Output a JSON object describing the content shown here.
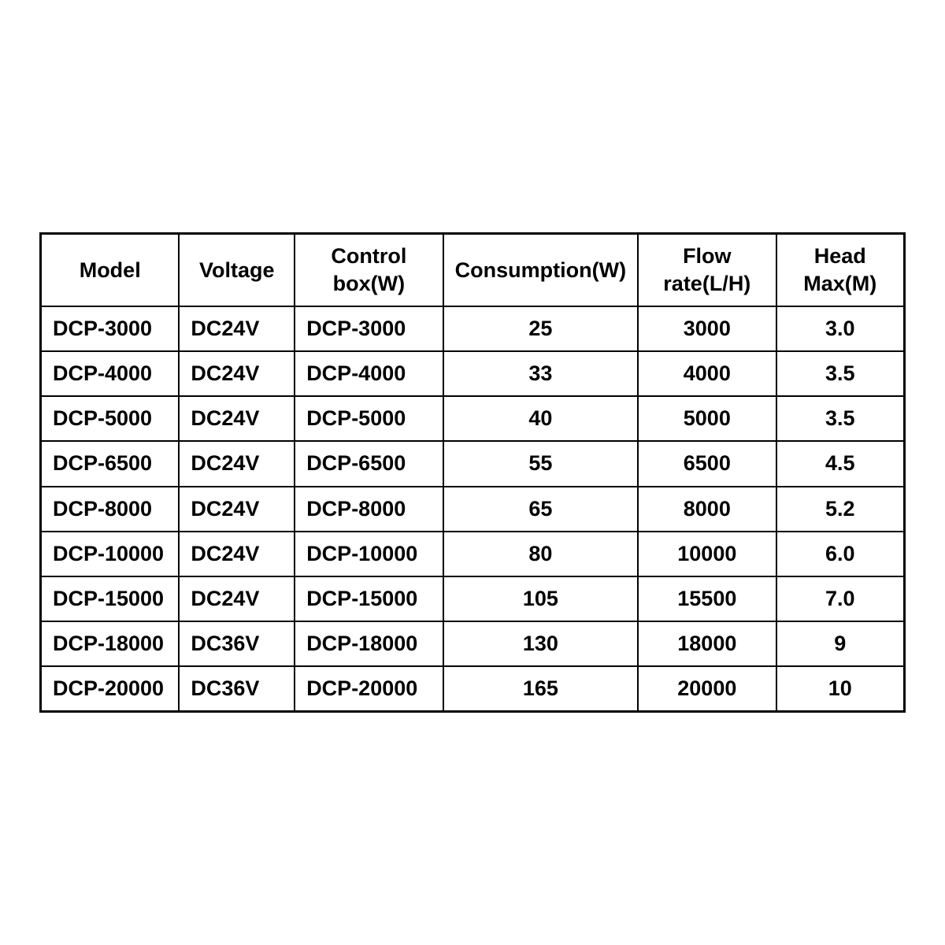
{
  "table": {
    "columns": [
      {
        "label": "Model",
        "align": "left"
      },
      {
        "label": "Voltage",
        "align": "left"
      },
      {
        "label": "Control box(W)",
        "align": "left"
      },
      {
        "label": "Consumption(W)",
        "align": "center"
      },
      {
        "label": "Flow rate(L/H)",
        "align": "center"
      },
      {
        "label": "Head Max(M)",
        "align": "center"
      }
    ],
    "rows": [
      [
        "DCP-3000",
        "DC24V",
        "DCP-3000",
        "25",
        "3000",
        "3.0"
      ],
      [
        "DCP-4000",
        "DC24V",
        "DCP-4000",
        "33",
        "4000",
        "3.5"
      ],
      [
        "DCP-5000",
        "DC24V",
        "DCP-5000",
        "40",
        "5000",
        "3.5"
      ],
      [
        "DCP-6500",
        "DC24V",
        "DCP-6500",
        "55",
        "6500",
        "4.5"
      ],
      [
        "DCP-8000",
        "DC24V",
        "DCP-8000",
        "65",
        "8000",
        "5.2"
      ],
      [
        "DCP-10000",
        "DC24V",
        "DCP-10000",
        "80",
        "10000",
        "6.0"
      ],
      [
        "DCP-15000",
        "DC24V",
        "DCP-15000",
        "105",
        "15500",
        "7.0"
      ],
      [
        "DCP-18000",
        "DC36V",
        "DCP-18000",
        "130",
        "18000",
        "9"
      ],
      [
        "DCP-20000",
        "DC36V",
        "DCP-20000",
        "165",
        "20000",
        "10"
      ]
    ],
    "border_color": "#000000",
    "background_color": "#ffffff",
    "text_color": "#000000",
    "font_weight": "bold",
    "font_size_pt": 20
  }
}
